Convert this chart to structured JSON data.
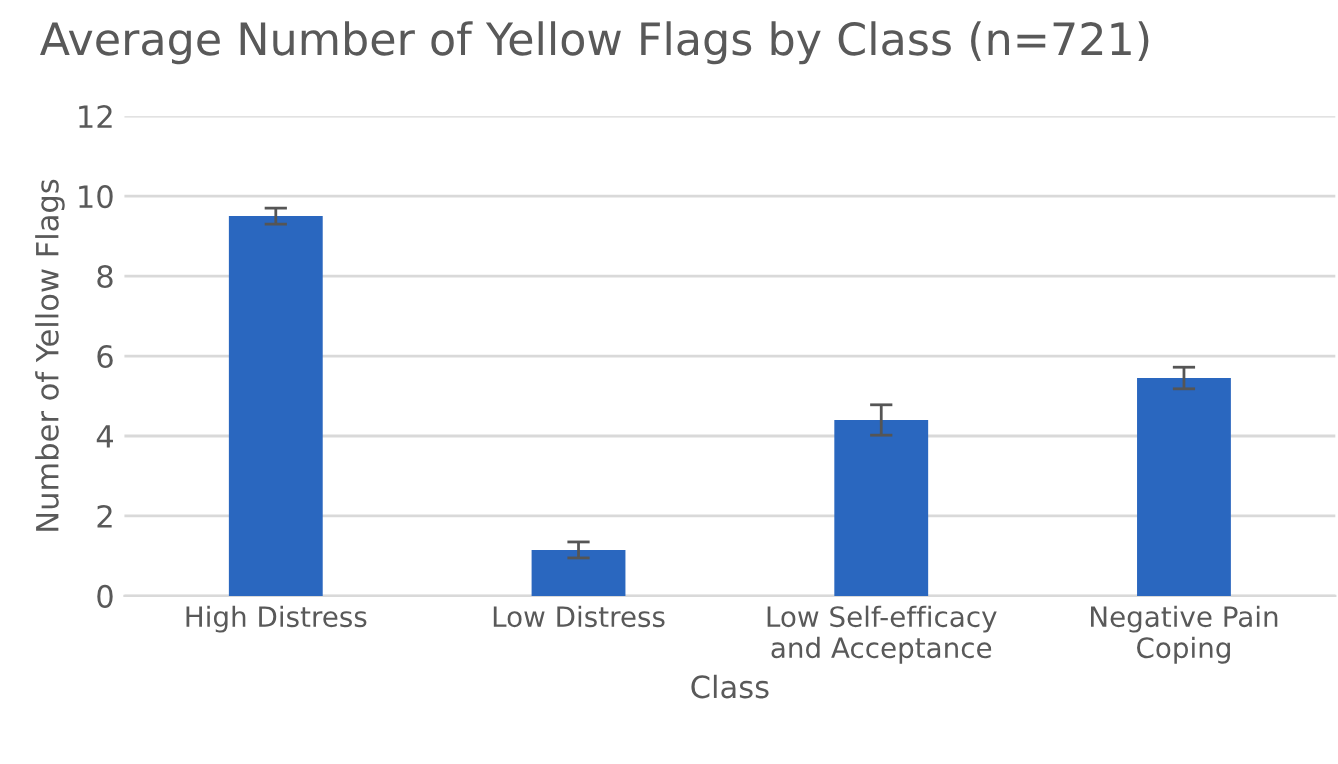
{
  "chart_data": {
    "type": "bar",
    "title": "Average Number of Yellow Flags by Class (n=721)",
    "xlabel": "Class",
    "ylabel": "Number of Yellow Flags",
    "categories": [
      "High Distress",
      "Low Distress",
      "Low Self-efficacy\nand Acceptance",
      "Negative Pain\nCoping"
    ],
    "values": [
      9.5,
      1.15,
      4.4,
      5.45
    ],
    "errors": [
      0.2,
      0.2,
      0.38,
      0.27
    ],
    "color": "#2a67bf",
    "ylim": [
      0,
      12
    ],
    "yticks": [
      0,
      2,
      4,
      6,
      8,
      10,
      12
    ],
    "grid": "y"
  }
}
